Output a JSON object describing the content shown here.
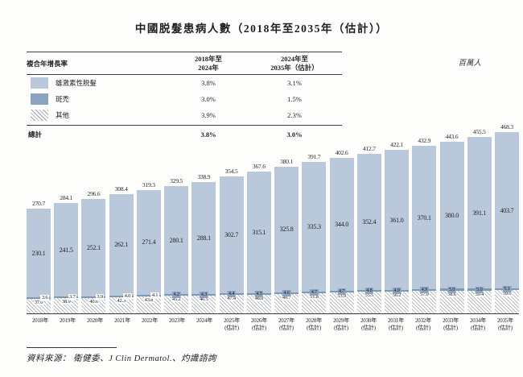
{
  "title": "中國脱髮患病人數（2018年至2035年（估計））",
  "unit_label": "百萬人",
  "legend": {
    "header": {
      "label": "複合年增長率",
      "col1": "2018年至\n2024年",
      "col2": "2024年至\n2035年（估計）"
    },
    "rows": [
      {
        "label": "雄激素性脱髮",
        "cagr_2018_2024": "3.8%",
        "cagr_2024_2035": "3.1%"
      },
      {
        "label": "斑禿",
        "cagr_2018_2024": "3.0%",
        "cagr_2024_2035": "1.5%"
      },
      {
        "label": "其他",
        "cagr_2018_2024": "3.9%",
        "cagr_2024_2035": "2.3%"
      }
    ],
    "total_row": {
      "label": "總計",
      "cagr_2018_2024": "3.8%",
      "cagr_2024_2035": "3.0%"
    }
  },
  "chart_data": {
    "type": "bar",
    "stacked": true,
    "title": "中國脱髮患病人數（2018年至2035年（估計））",
    "ylabel": "百萬人",
    "xlabel": "",
    "ylim": [
      0,
      500
    ],
    "grid": false,
    "legend_position": "top-left-table",
    "categories": [
      "2018年",
      "2019年",
      "2020年",
      "2021年",
      "2022年",
      "2023年",
      "2024年",
      "2025年",
      "2026年",
      "2027年",
      "2028年",
      "2029年",
      "2030年",
      "2031年",
      "2032年",
      "2033年",
      "2034年",
      "2035年"
    ],
    "estimate_from_index": 7,
    "estimate_label": "(估計)",
    "series": [
      {
        "name": "雄激素性脱髮",
        "values": [
          230.1,
          241.5,
          252.1,
          262.1,
          271.4,
          280.1,
          288.1,
          302.7,
          315.1,
          325.8,
          335.3,
          344.0,
          352.4,
          361.0,
          370.1,
          380.0,
          391.1,
          403.7
        ]
      },
      {
        "name": "斑禿",
        "values": [
          3.6,
          3.7,
          3.9,
          4.0,
          4.1,
          4.2,
          4.3,
          4.4,
          4.5,
          4.6,
          4.7,
          4.7,
          4.8,
          4.9,
          4.9,
          5.0,
          5.0,
          5.1
        ]
      },
      {
        "name": "其他",
        "values": [
          37.0,
          38.9,
          40.6,
          42.3,
          43.8,
          45.2,
          46.5,
          47.4,
          48.0,
          49.7,
          51.8,
          53.9,
          55.5,
          56.2,
          57.9,
          58.6,
          59.4,
          59.6
        ]
      }
    ],
    "totals": [
      270.7,
      284.1,
      296.6,
      308.4,
      319.3,
      329.5,
      338.9,
      354.5,
      367.6,
      380.1,
      391.7,
      402.6,
      412.7,
      422.1,
      432.9,
      443.6,
      455.5,
      468.3
    ]
  },
  "colors": {
    "androgenetic": "#b9c8da",
    "alopecia_areata": "#8ba3c0",
    "others_hatch_line": "#9aa0a8",
    "text": "#1f1f1f"
  },
  "source": "資料來源： 衛健委、J Clin Dermatol.、灼識諮詢"
}
